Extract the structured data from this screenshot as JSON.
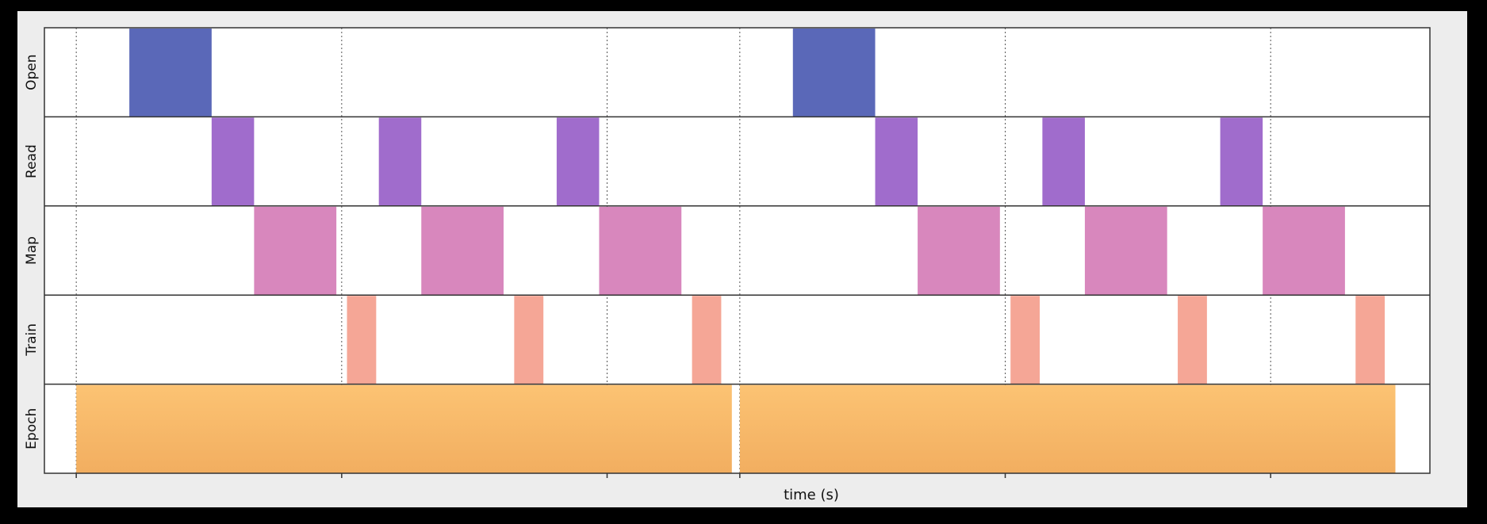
{
  "chart_data": {
    "type": "timeline",
    "xlabel": "time (s)",
    "x_domain": [
      -0.12,
      5.1
    ],
    "lanes": [
      {
        "name": "Open",
        "color": "#5a68b8",
        "intervals": [
          [
            0.2,
            0.51
          ],
          [
            2.7,
            3.01
          ]
        ]
      },
      {
        "name": "Read",
        "color": "#a06ccc",
        "intervals": [
          [
            0.51,
            0.67
          ],
          [
            1.14,
            1.3
          ],
          [
            1.81,
            1.97
          ],
          [
            3.01,
            3.17
          ],
          [
            3.64,
            3.8
          ],
          [
            4.31,
            4.47
          ]
        ]
      },
      {
        "name": "Map",
        "color": "#d887bd",
        "intervals": [
          [
            0.67,
            0.98
          ],
          [
            1.3,
            1.61
          ],
          [
            1.97,
            2.28
          ],
          [
            3.17,
            3.48
          ],
          [
            3.8,
            4.11
          ],
          [
            4.47,
            4.78
          ]
        ]
      },
      {
        "name": "Train",
        "color": "#f5a696",
        "intervals": [
          [
            1.02,
            1.13
          ],
          [
            1.65,
            1.76
          ],
          [
            2.32,
            2.43
          ],
          [
            3.52,
            3.63
          ],
          [
            4.15,
            4.26
          ],
          [
            4.82,
            4.93
          ]
        ]
      },
      {
        "name": "Epoch",
        "color": "#fbbd6e",
        "intervals": [
          [
            0.0,
            2.47
          ],
          [
            2.5,
            4.97
          ]
        ]
      }
    ],
    "vertical_gridlines": [
      0.0,
      1.0,
      2.0,
      2.5,
      3.5,
      4.5
    ],
    "grid": true,
    "legend": "none"
  }
}
